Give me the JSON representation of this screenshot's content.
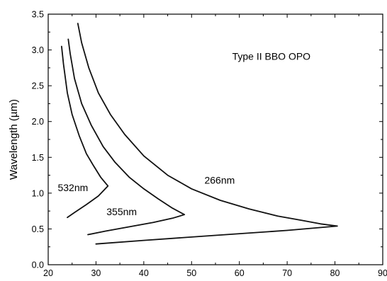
{
  "chart_data": {
    "type": "line",
    "title": "",
    "xlabel": "",
    "ylabel": "Wavelength (µm)",
    "xlim": [
      20,
      90
    ],
    "ylim": [
      0.0,
      3.5
    ],
    "xticks": [
      20,
      30,
      40,
      50,
      60,
      70,
      80,
      90
    ],
    "yticks": [
      0.0,
      0.5,
      1.0,
      1.5,
      2.0,
      2.5,
      3.0,
      3.5
    ],
    "ytick_labels": [
      "0.0",
      "0.5",
      "1.0",
      "1.5",
      "2.0",
      "2.5",
      "3.0",
      "3.5"
    ],
    "grid": false,
    "annotations": [
      {
        "text": "Type II BBO OPO",
        "x": 58.5,
        "y": 2.86
      },
      {
        "text": "532nm",
        "x": 22.0,
        "y": 1.03
      },
      {
        "text": "355nm",
        "x": 32.2,
        "y": 0.69
      },
      {
        "text": "266nm",
        "x": 52.7,
        "y": 1.13
      }
    ],
    "series": [
      {
        "x": [
          22.8,
          23.2,
          24.0,
          25.0,
          26.5,
          28.0,
          29.5,
          31.0,
          32.0,
          32.5,
          30.5,
          28.0,
          25.5,
          24.0
        ],
        "y": [
          3.05,
          2.8,
          2.4,
          2.1,
          1.8,
          1.55,
          1.38,
          1.22,
          1.14,
          1.1,
          0.96,
          0.84,
          0.73,
          0.66
        ]
      },
      {
        "x": [
          24.2,
          24.6,
          25.5,
          27.0,
          29.0,
          31.5,
          34.0,
          37.0,
          40.0,
          43.0,
          46.0,
          48.5,
          46.0,
          42.0,
          37.0,
          32.0,
          28.3
        ],
        "y": [
          3.15,
          2.95,
          2.6,
          2.25,
          1.95,
          1.65,
          1.43,
          1.22,
          1.06,
          0.92,
          0.79,
          0.7,
          0.65,
          0.59,
          0.53,
          0.47,
          0.42
        ]
      },
      {
        "x": [
          26.2,
          27.0,
          28.5,
          30.5,
          33.0,
          36.0,
          40.0,
          45.0,
          50.0,
          56.0,
          62.0,
          68.0,
          73.0,
          77.0,
          80.5,
          70.0,
          55.0,
          40.0,
          30.0
        ],
        "y": [
          3.37,
          3.1,
          2.75,
          2.4,
          2.1,
          1.82,
          1.52,
          1.25,
          1.06,
          0.9,
          0.78,
          0.68,
          0.62,
          0.57,
          0.54,
          0.48,
          0.41,
          0.34,
          0.29
        ]
      }
    ]
  }
}
